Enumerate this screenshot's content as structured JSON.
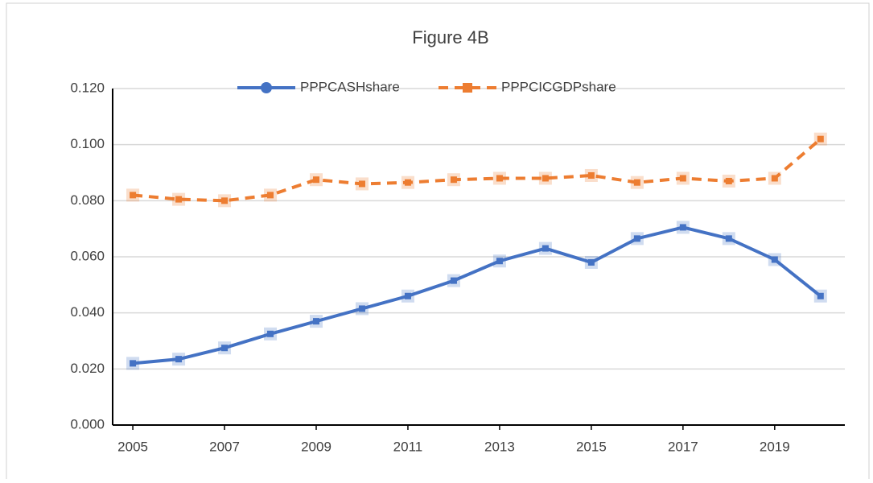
{
  "chart_data": {
    "type": "line",
    "title": "Figure 4B",
    "x": [
      2005,
      2006,
      2007,
      2008,
      2009,
      2010,
      2011,
      2012,
      2013,
      2014,
      2015,
      2016,
      2017,
      2018,
      2019,
      2020
    ],
    "series": [
      {
        "name": "PPPCASHshare",
        "color": "#4472c4",
        "dash": false,
        "values": [
          0.022,
          0.0235,
          0.0275,
          0.0325,
          0.037,
          0.0415,
          0.046,
          0.0515,
          0.0585,
          0.063,
          0.058,
          0.0665,
          0.0705,
          0.0665,
          0.059,
          0.046
        ]
      },
      {
        "name": "PPPCICGDPshare",
        "color": "#ed7d31",
        "dash": true,
        "values": [
          0.082,
          0.0805,
          0.08,
          0.082,
          0.0875,
          0.086,
          0.0865,
          0.0875,
          0.088,
          0.088,
          0.089,
          0.0865,
          0.088,
          0.087,
          0.088,
          0.102
        ]
      }
    ],
    "xlim": [
      2004.56,
      2020.53
    ],
    "xticks": [
      2005,
      2007,
      2009,
      2011,
      2013,
      2015,
      2017,
      2019
    ],
    "ylim": [
      0,
      0.12
    ],
    "yticks": [
      {
        "value": 0,
        "label": "0.000"
      },
      {
        "value": 0.02,
        "label": "0.020"
      },
      {
        "value": 0.04,
        "label": "0.040"
      },
      {
        "value": 0.06,
        "label": "0.060"
      },
      {
        "value": 0.08,
        "label": "0.080"
      },
      {
        "value": 0.1,
        "label": "0.100"
      },
      {
        "value": 0.12,
        "label": "0.120"
      }
    ],
    "grid": true,
    "legend": "top"
  }
}
